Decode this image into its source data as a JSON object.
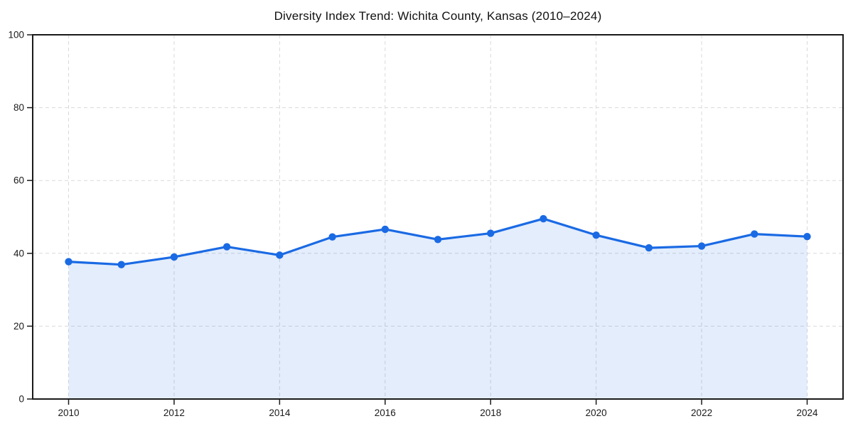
{
  "chart_data": {
    "type": "line",
    "area_fill": true,
    "title": "Diversity Index Trend: Wichita County, Kansas (2010–2024)",
    "xlabel": "",
    "ylabel": "",
    "x": [
      2010,
      2011,
      2012,
      2013,
      2014,
      2015,
      2016,
      2017,
      2018,
      2019,
      2020,
      2021,
      2022,
      2023,
      2024
    ],
    "series": [
      {
        "name": "Diversity Index",
        "values": [
          37.7,
          36.9,
          39.0,
          41.8,
          39.5,
          44.5,
          46.6,
          43.8,
          45.5,
          49.5,
          45.0,
          41.5,
          42.0,
          45.3,
          44.6
        ]
      }
    ],
    "ylim": [
      0,
      100
    ],
    "yticks": [
      0,
      20,
      40,
      60,
      80,
      100
    ],
    "xtick_labels": [
      "2010",
      "2012",
      "2014",
      "2016",
      "2018",
      "2020",
      "2022",
      "2024"
    ],
    "xtick_every": 2,
    "grid": true,
    "legend": "none",
    "line_color": "#1a6ae4",
    "fill_opacity": 0.12,
    "grid_color": "#d9d9d9",
    "axis_color": "#1a1a1a",
    "tick_label_color": "#1a1a1a",
    "background": "#ffffff"
  }
}
